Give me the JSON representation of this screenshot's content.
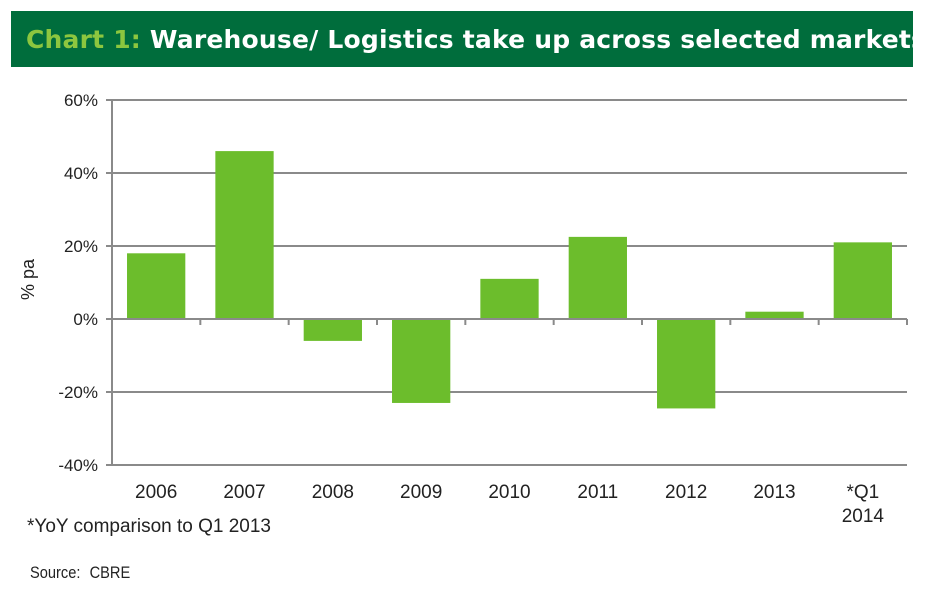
{
  "header": {
    "prefix": "Chart 1:",
    "title": "Warehouse/ Logistics take up across selected markets"
  },
  "chart_data": {
    "type": "bar",
    "categories": [
      "2006",
      "2007",
      "2008",
      "2009",
      "2010",
      "2011",
      "2012",
      "2013",
      "*Q1 2014"
    ],
    "values": [
      18,
      46,
      -6,
      -23,
      11,
      22.5,
      -24.5,
      2,
      21
    ],
    "ylabel": "% pa",
    "xlabel": "",
    "ylim": [
      -40,
      60
    ],
    "yticks": [
      60,
      40,
      20,
      0,
      -20,
      -40
    ],
    "ytick_format": "percent",
    "grid": true,
    "legend": "none",
    "bar_color": "#6cbd2c",
    "grid_color": "#8a8a8a"
  },
  "footnote": "*YoY comparison to Q1 2013",
  "source": {
    "label": "Source:",
    "value": "CBRE"
  }
}
